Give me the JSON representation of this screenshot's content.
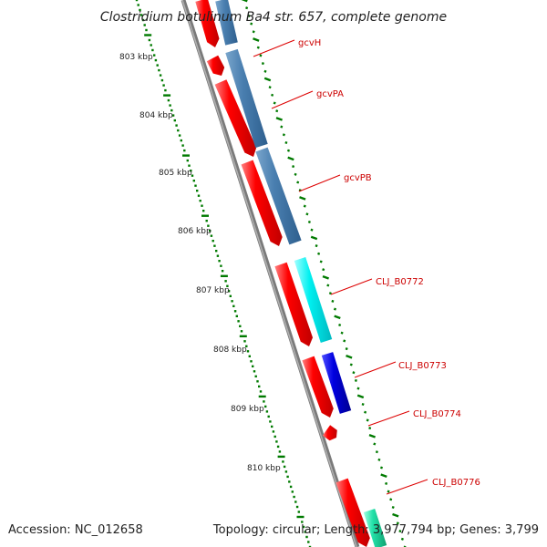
{
  "title": "Clostridium botulinum Ba4 str. 657, complete genome",
  "accession_text": "Accession: NC_012658",
  "topology_text": "Topology: circular; Length: 3,977,794 bp; Genes: 3,799",
  "scale_labels": [
    "803 kbp",
    "804 kbp",
    "805 kbp",
    "806 kbp",
    "807 kbp",
    "808 kbp",
    "809 kbp",
    "810 kbp"
  ],
  "gene_labels": [
    "gcvH",
    "gcvPA",
    "gcvPB",
    "CLJ_B0772",
    "CLJ_B0773",
    "CLJ_B0774",
    "CLJ_B0776"
  ],
  "colors": {
    "cds": "#ff0000",
    "gcv_genes": "#4a7fb0",
    "clj_b0772": "#00e5e5",
    "clj_b0773": "#0000e0",
    "clj_b0776": "#22e0a8",
    "backbone": "#808080",
    "ticks": "#007a00",
    "label_line": "#dd0000"
  }
}
